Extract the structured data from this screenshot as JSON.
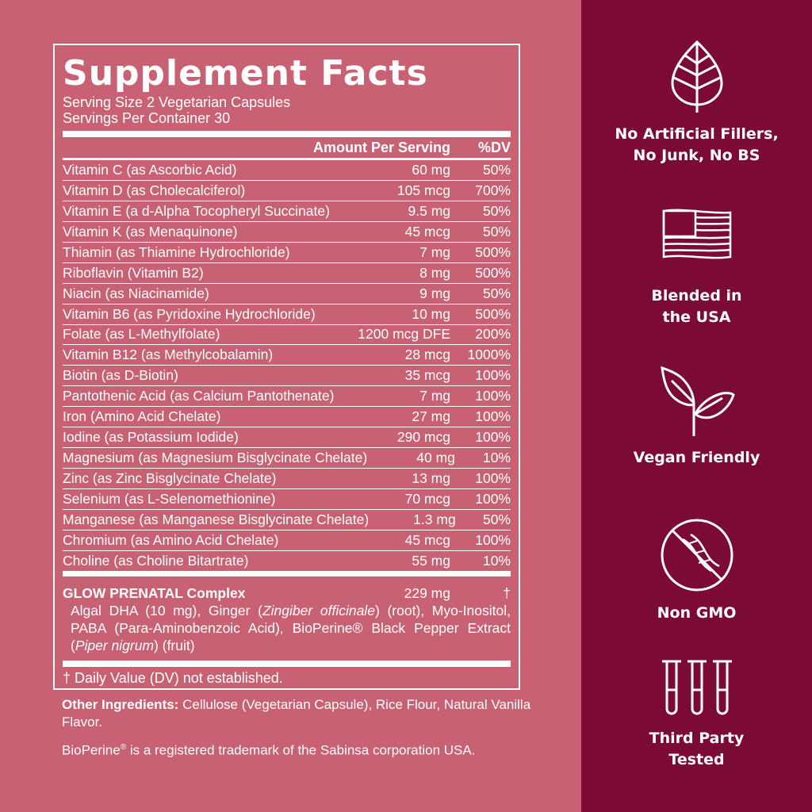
{
  "colors": {
    "left_bg": "#c86173",
    "right_bg": "#7c0a37",
    "text": "#ffffff"
  },
  "facts": {
    "title": "Supplement Facts",
    "serving_size": "Serving Size 2 Vegetarian Capsules",
    "servings_per_container": "Servings Per Container 30",
    "col_amount": "Amount Per Serving",
    "col_dv": "%DV",
    "rows": [
      {
        "name": "Vitamin C (as Ascorbic Acid)",
        "amount": "60 mg",
        "dv": "50%"
      },
      {
        "name": "Vitamin D (as Cholecalciferol)",
        "amount": "105 mcg",
        "dv": "700%"
      },
      {
        "name": "Vitamin E (a d-Alpha Tocopheryl Succinate)",
        "amount": "9.5 mg",
        "dv": "50%"
      },
      {
        "name": "Vitamin K (as Menaquinone)",
        "amount": "45 mcg",
        "dv": "50%"
      },
      {
        "name": "Thiamin (as Thiamine Hydrochloride)",
        "amount": "7 mg",
        "dv": "500%"
      },
      {
        "name": "Riboflavin (Vitamin B2)",
        "amount": "8 mg",
        "dv": "500%"
      },
      {
        "name": "Niacin (as Niacinamide)",
        "amount": "9 mg",
        "dv": "50%"
      },
      {
        "name": "Vitamin B6 (as Pyridoxine Hydrochloride)",
        "amount": "10 mg",
        "dv": "500%"
      },
      {
        "name": "Folate (as L-Methylfolate)",
        "amount": "1200 mcg DFE",
        "dv": "200%"
      },
      {
        "name": "Vitamin B12 (as Methylcobalamin)",
        "amount": "28 mcg",
        "dv": "1000%"
      },
      {
        "name": "Biotin (as D-Biotin)",
        "amount": "35 mcg",
        "dv": "100%"
      },
      {
        "name": "Pantothenic Acid (as Calcium Pantothenate)",
        "amount": "7 mg",
        "dv": "100%"
      },
      {
        "name": "Iron (Amino Acid Chelate)",
        "amount": "27 mg",
        "dv": "100%"
      },
      {
        "name": "Iodine (as Potassium Iodide)",
        "amount": "290 mcg",
        "dv": "100%"
      },
      {
        "name": "Magnesium (as Magnesium Bisglycinate Chelate)",
        "amount": "40 mg",
        "dv": "10%"
      },
      {
        "name": "Zinc (as Zinc Bisglycinate Chelate)",
        "amount": "13 mg",
        "dv": "100%"
      },
      {
        "name": "Selenium (as L-Selenomethionine)",
        "amount": "70 mcg",
        "dv": "100%"
      },
      {
        "name": "Manganese (as Manganese Bisglycinate Chelate)",
        "amount": "1.3 mg",
        "dv": "50%"
      },
      {
        "name": "Chromium (as Amino Acid Chelate)",
        "amount": "45 mcg",
        "dv": "100%"
      },
      {
        "name": "Choline (as Choline Bitartrate)",
        "amount": "55 mg",
        "dv": "10%"
      }
    ],
    "complex": {
      "name": "GLOW PRENATAL Complex",
      "amount": "229 mg",
      "dv": "†",
      "t1": "Algal DHA (10 mg), Ginger (",
      "i1": "Zingiber officinale",
      "t2": ") (root), Myo-Inositol, PABA (Para-Aminobenzoic Acid), BioPerine® Black Pepper Extract (",
      "i2": "Piper nigrum",
      "t3": ") (fruit)"
    },
    "footnote": "† Daily Value (DV) not established."
  },
  "other_ingredients": {
    "label": "Other Ingredients:",
    "text": " Cellulose (Vegetarian Capsule), Rice Flour, Natural Vanilla Flavor."
  },
  "trademark": {
    "brand": "BioPerine",
    "mark": "®",
    "text": " is a registered trademark of the Sabinsa corporation USA."
  },
  "badges": [
    {
      "icon": "leaf-icon",
      "label1": "No Artificial Fillers,",
      "label2": "No Junk, No BS"
    },
    {
      "icon": "usa-flag-icon",
      "label1": "Blended in",
      "label2": "the USA"
    },
    {
      "icon": "sprout-icon",
      "label1": "Vegan Friendly",
      "label2": ""
    },
    {
      "icon": "no-gmo-icon",
      "label1": "Non GMO",
      "label2": ""
    },
    {
      "icon": "test-tubes-icon",
      "label1": "Third Party",
      "label2": "Tested"
    }
  ]
}
